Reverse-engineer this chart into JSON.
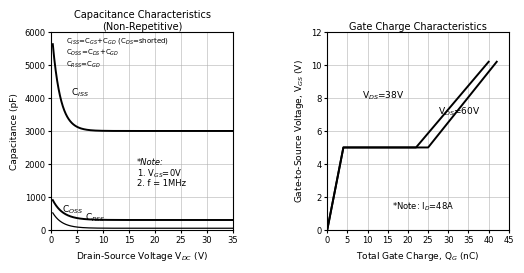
{
  "left": {
    "title_line1": "Capacitance Characteristics",
    "title_line2": "(Non-Repetitive)",
    "xlabel": "Drain-Source Voltage V$_{DC}$ (V)",
    "ylabel": "Capacitance (pF)",
    "xlim": [
      0,
      35
    ],
    "ylim": [
      0,
      6000
    ],
    "xticks": [
      0,
      5,
      10,
      15,
      20,
      25,
      30,
      35
    ],
    "yticks": [
      0,
      1000,
      2000,
      3000,
      4000,
      5000,
      6000
    ],
    "legend_text": [
      "C$_{ISS}$=C$_{GS}$+C$_{GD}$ (C$_{DS}$=shorted)",
      "C$_{OSS}$=C$_{DS}$+C$_{GD}$",
      "C$_{RSS}$=C$_{GD}$"
    ],
    "note_line1": "*Note:",
    "note_line2": "1. V$_{GS}$=0V",
    "note_line3": "2. f = 1MHz",
    "curve_labels": [
      "C$_{ISS}$",
      "C$_{OSS}$",
      "C$_{RSS}$"
    ]
  },
  "right": {
    "title": "Gate Charge Characteristics",
    "xlabel": "Total Gate Charge, Q$_{G}$ (nC)",
    "ylabel": "Gate-to-Source Voltage, V$_{GS}$ (V)",
    "xlim": [
      0,
      45
    ],
    "ylim": [
      0,
      12
    ],
    "xticks": [
      0,
      5,
      10,
      15,
      20,
      25,
      30,
      35,
      40,
      45
    ],
    "yticks": [
      0,
      2,
      4,
      6,
      8,
      10,
      12
    ],
    "note": "*Note: I$_{D}$=48A",
    "vds_labels": [
      "V$_{DS}$=38V",
      "V$_{DS}$=60V"
    ]
  }
}
